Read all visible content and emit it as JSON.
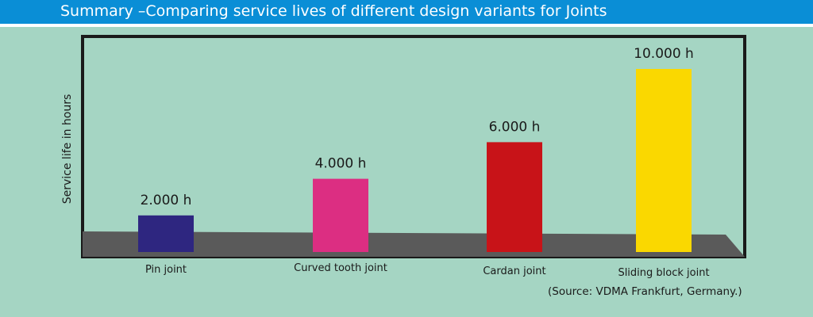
{
  "header": {
    "title": "Summary –Comparing service lives of different design variants for Joints"
  },
  "chart_data": {
    "type": "bar",
    "ylabel": "Service life in hours",
    "ylim": [
      0,
      10000
    ],
    "grid": false,
    "categories": [
      "Pin joint",
      "Curved tooth joint",
      "Cardan joint",
      "Sliding block joint"
    ],
    "values": [
      2000,
      4000,
      6000,
      10000
    ],
    "value_labels": [
      "2.000 h",
      "4.000 h",
      "6.000 h",
      "10.000 h"
    ],
    "colors": [
      "#2e2680",
      "#dc2e82",
      "#c81318",
      "#fad800"
    ]
  },
  "footer": {
    "source": "(Source: VDMA Frankfurt, Germany.)"
  },
  "colors": {
    "banner": "#0a8ed6",
    "background": "#a5d5c3",
    "floor": "#5a5a5a",
    "frame": "#1a1a1a"
  }
}
